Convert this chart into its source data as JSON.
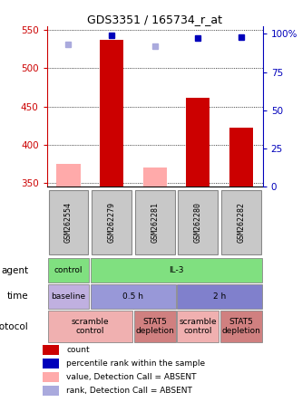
{
  "title": "GDS3351 / 165734_r_at",
  "samples": [
    "GSM262554",
    "GSM262279",
    "GSM262281",
    "GSM262280",
    "GSM262282"
  ],
  "count_values": [
    null,
    537,
    null,
    462,
    422
  ],
  "count_absent": [
    375,
    null,
    370,
    null,
    null
  ],
  "percentile_values": [
    null,
    99,
    null,
    97,
    98
  ],
  "percentile_absent": [
    93,
    null,
    92,
    null,
    null
  ],
  "ylim_left": [
    345,
    555
  ],
  "ylim_right": [
    0,
    105
  ],
  "yticks_left": [
    350,
    400,
    450,
    500,
    550
  ],
  "yticks_right": [
    0,
    25,
    50,
    75,
    100
  ],
  "yright_labels": [
    "0",
    "25",
    "50",
    "75",
    "100%"
  ],
  "agent_row": [
    {
      "label": "control",
      "span": [
        0,
        1
      ],
      "color": "#80e080"
    },
    {
      "label": "IL-3",
      "span": [
        1,
        5
      ],
      "color": "#80e080"
    }
  ],
  "time_row": [
    {
      "label": "baseline",
      "span": [
        0,
        1
      ],
      "color": "#c0b0e0"
    },
    {
      "label": "0.5 h",
      "span": [
        1,
        3
      ],
      "color": "#9898d8"
    },
    {
      "label": "2 h",
      "span": [
        3,
        5
      ],
      "color": "#8080cc"
    }
  ],
  "protocol_row": [
    {
      "label": "scramble\ncontrol",
      "span": [
        0,
        2
      ],
      "color": "#f0b0b0"
    },
    {
      "label": "STAT5\ndepletion",
      "span": [
        2,
        3
      ],
      "color": "#d08080"
    },
    {
      "label": "scramble\ncontrol",
      "span": [
        3,
        4
      ],
      "color": "#f0b0b0"
    },
    {
      "label": "STAT5\ndepletion",
      "span": [
        4,
        5
      ],
      "color": "#d08080"
    }
  ],
  "bar_color_present": "#cc0000",
  "bar_color_absent": "#ffaaaa",
  "dot_color_present": "#0000bb",
  "dot_color_absent": "#aaaadd",
  "sample_bg_color": "#c8c8c8",
  "left_axis_color": "#cc0000",
  "right_axis_color": "#0000bb",
  "legend_items": [
    {
      "color": "#cc0000",
      "label": "count"
    },
    {
      "color": "#0000bb",
      "label": "percentile rank within the sample"
    },
    {
      "color": "#ffaaaa",
      "label": "value, Detection Call = ABSENT"
    },
    {
      "color": "#aaaadd",
      "label": "rank, Detection Call = ABSENT"
    }
  ]
}
